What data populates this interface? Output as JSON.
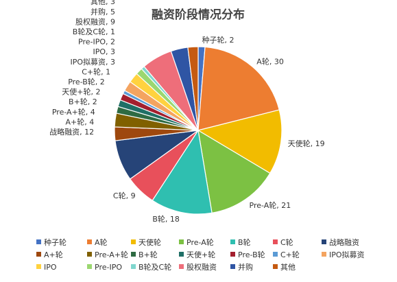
{
  "chart_data": {
    "type": "pie",
    "title": "融资阶段情况分布",
    "slices": [
      {
        "label": "种子轮",
        "value": 2,
        "color": "#4472C4"
      },
      {
        "label": "A轮",
        "value": 30,
        "color": "#ED7D31"
      },
      {
        "label": "天使轮",
        "value": 19,
        "color": "#F2BC00"
      },
      {
        "label": "Pre-A轮",
        "value": 21,
        "color": "#7CC143"
      },
      {
        "label": "B轮",
        "value": 18,
        "color": "#2FBFB0"
      },
      {
        "label": "C轮",
        "value": 9,
        "color": "#E8505B"
      },
      {
        "label": "战略融资",
        "value": 12,
        "color": "#264478"
      },
      {
        "label": "A+轮",
        "value": 4,
        "color": "#9E480E"
      },
      {
        "label": "Pre-A+轮",
        "value": 4,
        "color": "#806000"
      },
      {
        "label": "B+轮",
        "value": 2,
        "color": "#2E6B43"
      },
      {
        "label": "天使+轮",
        "value": 2,
        "color": "#1F6F66"
      },
      {
        "label": "Pre-B轮",
        "value": 2,
        "color": "#A31F2E"
      },
      {
        "label": "C+轮",
        "value": 1,
        "color": "#5B9BD5"
      },
      {
        "label": "IPO拟募资",
        "value": 3,
        "color": "#F4A460"
      },
      {
        "label": "IPO",
        "value": 3,
        "color": "#FFD23F"
      },
      {
        "label": "Pre-IPO",
        "value": 2,
        "color": "#9BD770"
      },
      {
        "label": "B轮及C轮",
        "value": 1,
        "color": "#7FD6CE"
      },
      {
        "label": "股权融资",
        "value": 9,
        "color": "#EE6E7A"
      },
      {
        "label": "并购",
        "value": 5,
        "color": "#2F55A4"
      },
      {
        "label": "其他",
        "value": 3,
        "color": "#C55A11"
      }
    ],
    "legend_position": "bottom"
  }
}
